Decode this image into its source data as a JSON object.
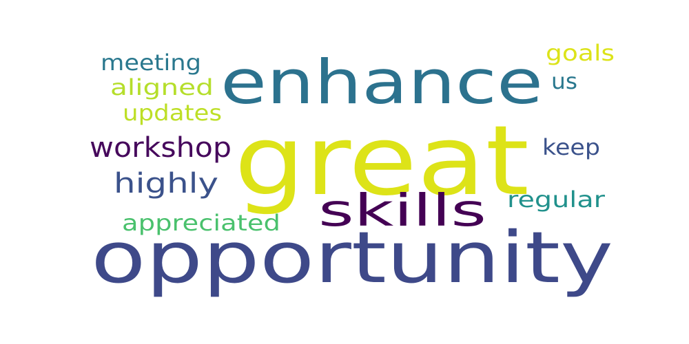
{
  "words": [
    {
      "text": "opportunity",
      "color": "#3e4989"
    },
    {
      "text": "great",
      "color": "#dde318"
    },
    {
      "text": "enhance",
      "color": "#2c728e"
    },
    {
      "text": "skills",
      "color": "#440154"
    },
    {
      "text": "workshop",
      "color": "#46085c"
    },
    {
      "text": "highly",
      "color": "#3b528b"
    },
    {
      "text": "meeting",
      "color": "#2a788e"
    },
    {
      "text": "aligned",
      "color": "#b5de2b"
    },
    {
      "text": "updates",
      "color": "#bddf26"
    },
    {
      "text": "appreciated",
      "color": "#4ac16d"
    },
    {
      "text": "goals",
      "color": "#dce319"
    },
    {
      "text": "us",
      "color": "#2a788e"
    },
    {
      "text": "keep",
      "color": "#3b528b"
    },
    {
      "text": "regular",
      "color": "#21918c"
    }
  ]
}
